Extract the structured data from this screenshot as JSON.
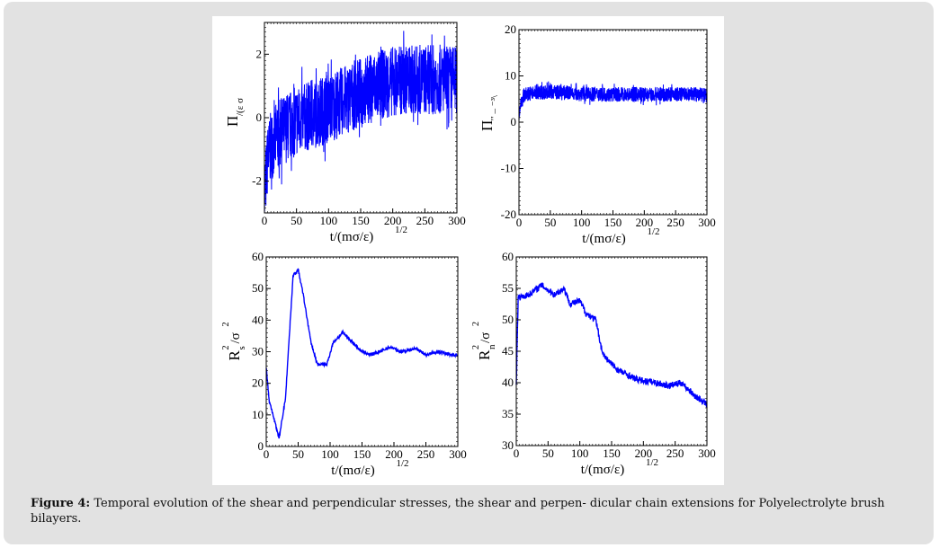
{
  "caption": {
    "label": "Figure 4:",
    "text": " Temporal evolution of the shear and perpendicular stresses, the shear and perpen- dicular chain extensions for Polyelectrolyte brush bilayers."
  },
  "colors": {
    "line": "#0000ff",
    "panel": "#e2e2e2"
  },
  "chart_data": [
    {
      "type": "line",
      "id": "shear-stress",
      "xlabel": "t/(mσ/ε)",
      "xlabel_sup": "1/2",
      "ylabel": "Π",
      "ylabel_sub": "/(ε σ",
      "xlim": [
        0,
        300
      ],
      "ylim": [
        -3,
        3
      ],
      "xticks": [
        0,
        50,
        100,
        150,
        200,
        250,
        300
      ],
      "yticks": [
        -2,
        0,
        2
      ],
      "x": [
        0,
        5,
        10,
        20,
        35,
        50,
        75,
        100,
        125,
        150,
        175,
        200,
        225,
        250,
        275,
        300
      ],
      "y": [
        -2.5,
        -1.3,
        -0.9,
        -0.6,
        -0.3,
        -0.1,
        0.1,
        0.3,
        0.55,
        0.8,
        1.0,
        1.15,
        1.2,
        1.2,
        1.2,
        1.2
      ],
      "noise": 1.1
    },
    {
      "type": "line",
      "id": "perpendicular-stress",
      "xlabel": "t/(mσ/ε)",
      "xlabel_sup": "1/2",
      "ylabel": "Π",
      "ylabel_sub": "′′ – ⁻³\\",
      "xlim": [
        0,
        300
      ],
      "ylim": [
        -20,
        20
      ],
      "xticks": [
        0,
        50,
        100,
        150,
        200,
        250,
        300
      ],
      "yticks": [
        -20,
        -10,
        0,
        10,
        20
      ],
      "x": [
        0,
        3,
        8,
        15,
        50,
        100,
        150,
        200,
        250,
        300
      ],
      "y": [
        1.5,
        4.5,
        5.8,
        6.2,
        6.6,
        6.1,
        6.0,
        6.0,
        6.0,
        6.0
      ],
      "noise": 1.6
    },
    {
      "type": "line",
      "id": "shear-extension",
      "xlabel": "t/(mσ/ε)",
      "xlabel_sup": "1/2",
      "ylabel": "R",
      "ylabel_sub": "s",
      "ylabel_rest": "/σ",
      "xlim": [
        0,
        300
      ],
      "ylim": [
        0,
        60
      ],
      "xticks": [
        0,
        50,
        100,
        150,
        200,
        250,
        300
      ],
      "yticks": [
        0,
        10,
        20,
        30,
        40,
        50,
        60
      ],
      "x": [
        0,
        5,
        12,
        20,
        30,
        42,
        50,
        58,
        70,
        80,
        95,
        105,
        120,
        135,
        150,
        165,
        195,
        210,
        235,
        250,
        270,
        290,
        300
      ],
      "y": [
        25,
        14,
        9,
        2.5,
        15,
        54,
        56,
        48,
        33,
        26,
        26,
        33,
        36,
        33,
        30,
        29,
        31.5,
        30,
        31,
        29,
        30,
        29,
        29
      ],
      "noise": 0.5
    },
    {
      "type": "line",
      "id": "perpendicular-extension",
      "xlabel": "t/(mσ/ε)",
      "xlabel_sup": "1/2",
      "ylabel": "R",
      "ylabel_sub": "n",
      "ylabel_rest": "/σ",
      "xlim": [
        0,
        300
      ],
      "ylim": [
        30,
        60
      ],
      "xticks": [
        0,
        50,
        100,
        150,
        200,
        250,
        300
      ],
      "yticks": [
        30,
        35,
        40,
        45,
        50,
        55,
        60
      ],
      "x": [
        0,
        3,
        20,
        40,
        60,
        75,
        85,
        100,
        110,
        125,
        135,
        140,
        160,
        190,
        220,
        240,
        260,
        280,
        300
      ],
      "y": [
        40,
        53.5,
        54,
        55.5,
        54,
        55,
        52.5,
        53,
        51,
        50,
        45,
        44,
        42,
        40.5,
        40,
        39.5,
        40,
        38,
        36.5
      ],
      "noise": 0.5
    }
  ]
}
